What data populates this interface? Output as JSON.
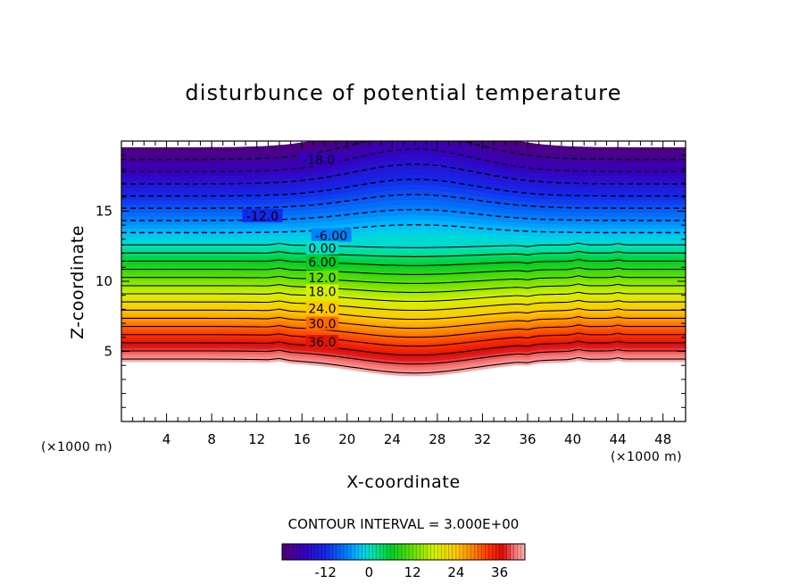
{
  "chart_data": {
    "type": "contour",
    "title": "disturbunce of potential temperature",
    "xlabel": "X-coordinate",
    "ylabel": "Z-coordinate",
    "x_unit_label": "(×1000 m)",
    "z_unit_label": "(×1000 m)",
    "xlim": [
      0,
      50
    ],
    "ylim": [
      0,
      20
    ],
    "x_ticks": [
      "4",
      "8",
      "12",
      "16",
      "20",
      "24",
      "28",
      "32",
      "36",
      "40",
      "44",
      "48"
    ],
    "y_ticks": [
      "5",
      "10",
      "15"
    ],
    "contour_interval_text": "CONTOUR INTERVAL = 3.000E+00",
    "contour_interval": 3,
    "contour_levels": [
      -21,
      -18,
      -15,
      -12,
      -9,
      -6,
      -3,
      0,
      3,
      6,
      9,
      12,
      15,
      18,
      21,
      24,
      27,
      30,
      33,
      36,
      39,
      42
    ],
    "negative_contours_dashed": true,
    "contour_labels": [
      {
        "text": "-18.0",
        "x": 17.5,
        "z": 18.6
      },
      {
        "text": "-12.0",
        "x": 12.5,
        "z": 14.6
      },
      {
        "text": "-6.00",
        "x": 18.6,
        "z": 13.2
      },
      {
        "text": "0.00",
        "x": 17.8,
        "z": 12.3
      },
      {
        "text": "6.00",
        "x": 17.8,
        "z": 11.3
      },
      {
        "text": "12.0",
        "x": 17.8,
        "z": 10.2
      },
      {
        "text": "18.0",
        "x": 17.8,
        "z": 9.2
      },
      {
        "text": "24.0",
        "x": 17.8,
        "z": 8.0
      },
      {
        "text": "30.0",
        "x": 17.8,
        "z": 6.9
      },
      {
        "text": "36.0",
        "x": 17.8,
        "z": 5.6
      }
    ],
    "colorbar": {
      "ticks": [
        "-12",
        "0",
        "12",
        "24",
        "36"
      ],
      "tick_values": [
        -12,
        0,
        12,
        24,
        36
      ],
      "range": [
        -24,
        43
      ]
    }
  }
}
